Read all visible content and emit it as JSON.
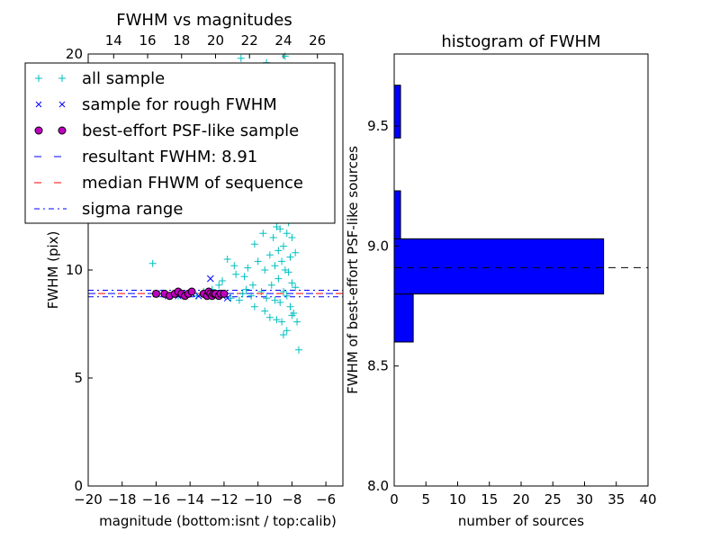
{
  "chart_data": [
    {
      "type": "scatter",
      "title": "FWHM vs magnitudes",
      "xlabel": "magnitude (bottom:isnt / top:calib)",
      "ylabel": "FWHM (pix)",
      "xlim": [
        -20,
        -5
      ],
      "ylim": [
        0,
        20
      ],
      "x_ticks": [
        -20,
        -18,
        -16,
        -14,
        -12,
        -10,
        -8,
        -6
      ],
      "x_tick_labels": [
        "−20",
        "−18",
        "−16",
        "−14",
        "−12",
        "−10",
        "−8",
        "−6"
      ],
      "y_ticks": [
        0,
        5,
        10,
        20
      ],
      "y_tick_labels": [
        "0",
        "5",
        "10",
        "20"
      ],
      "top_xlim": [
        12.5,
        27.5
      ],
      "top_x_ticks": [
        14,
        16,
        18,
        20,
        22,
        24,
        26
      ],
      "top_x_tick_labels": [
        "14",
        "16",
        "18",
        "20",
        "22",
        "24",
        "26"
      ],
      "grid": false,
      "legend_position": "top-left",
      "series": [
        {
          "name": "all sample",
          "marker": "plus",
          "color": "#00bfbf",
          "points": [
            [
              -16.2,
              10.3
            ],
            [
              -15.8,
              8.9
            ],
            [
              -15.2,
              8.8
            ],
            [
              -14.7,
              8.8
            ],
            [
              -14.3,
              8.8
            ],
            [
              -14.0,
              8.9
            ],
            [
              -13.6,
              8.8
            ],
            [
              -13.2,
              9.0
            ],
            [
              -12.9,
              8.9
            ],
            [
              -12.7,
              9.1
            ],
            [
              -12.4,
              8.9
            ],
            [
              -12.1,
              9.5
            ],
            [
              -11.8,
              10.5
            ],
            [
              -11.6,
              8.7
            ],
            [
              -11.3,
              9.8
            ],
            [
              -11.1,
              8.6
            ],
            [
              -10.9,
              8.9
            ],
            [
              -10.7,
              9.1
            ],
            [
              -10.6,
              10.1
            ],
            [
              -10.4,
              8.8
            ],
            [
              -10.3,
              9.3
            ],
            [
              -10.2,
              11.2
            ],
            [
              -10.0,
              10.4
            ],
            [
              -9.9,
              12.8
            ],
            [
              -9.8,
              9.0
            ],
            [
              -9.7,
              11.7
            ],
            [
              -9.6,
              10.0
            ],
            [
              -9.5,
              8.7
            ],
            [
              -9.4,
              12.4
            ],
            [
              -9.3,
              10.7
            ],
            [
              -9.2,
              9.3
            ],
            [
              -9.1,
              11.5
            ],
            [
              -9.0,
              8.6
            ],
            [
              -9.0,
              10.2
            ],
            [
              -8.9,
              12.0
            ],
            [
              -8.8,
              9.6
            ],
            [
              -8.8,
              10.9
            ],
            [
              -8.7,
              11.9
            ],
            [
              -8.7,
              8.5
            ],
            [
              -8.6,
              10.4
            ],
            [
              -8.6,
              12.5
            ],
            [
              -8.5,
              9.0
            ],
            [
              -8.5,
              11.1
            ],
            [
              -8.4,
              10.0
            ],
            [
              -8.4,
              12.9
            ],
            [
              -8.3,
              8.8
            ],
            [
              -8.3,
              11.7
            ],
            [
              -8.2,
              9.9
            ],
            [
              -8.2,
              12.2
            ],
            [
              -8.1,
              10.6
            ],
            [
              -8.1,
              8.3
            ],
            [
              -8.0,
              11.5
            ],
            [
              -8.0,
              9.4
            ],
            [
              -7.9,
              12.7
            ],
            [
              -7.9,
              8.0
            ],
            [
              -7.8,
              10.8
            ],
            [
              -7.8,
              9.2
            ],
            [
              -7.7,
              7.6
            ],
            [
              -7.6,
              6.3
            ],
            [
              -8.6,
              7.6
            ],
            [
              -8.3,
              7.2
            ],
            [
              -8.0,
              7.9
            ],
            [
              -9.3,
              7.8
            ],
            [
              -8.9,
              7.7
            ],
            [
              -10.2,
              8.3
            ],
            [
              -8.7,
              13.3
            ],
            [
              -8.2,
              13.5
            ],
            [
              -7.9,
              13.8
            ],
            [
              -9.2,
              13.1
            ],
            [
              -8.5,
              7.0
            ],
            [
              -9.6,
              8.1
            ],
            [
              -10.8,
              9.7
            ],
            [
              -11.4,
              10.2
            ],
            [
              -12.3,
              9.3
            ],
            [
              -9.5,
              19.6
            ],
            [
              -8.6,
              19.3
            ],
            [
              -8.4,
              19.9
            ],
            [
              -11.0,
              19.8
            ]
          ]
        },
        {
          "name": "sample for rough FWHM",
          "marker": "x",
          "color": "#0000ff",
          "points": [
            [
              -16.0,
              8.9
            ],
            [
              -15.3,
              8.8
            ],
            [
              -14.7,
              8.8
            ],
            [
              -14.3,
              8.9
            ],
            [
              -13.9,
              8.9
            ],
            [
              -13.5,
              8.8
            ],
            [
              -13.1,
              8.9
            ],
            [
              -12.8,
              9.6
            ],
            [
              -12.6,
              8.8
            ],
            [
              -12.4,
              8.9
            ],
            [
              -12.1,
              8.8
            ],
            [
              -11.8,
              8.7
            ]
          ]
        },
        {
          "name": "best-effort PSF-like sample",
          "marker": "circle",
          "color": "#bf00bf",
          "points": [
            [
              -16.0,
              8.9
            ],
            [
              -15.5,
              8.9
            ],
            [
              -15.2,
              8.8
            ],
            [
              -14.9,
              8.9
            ],
            [
              -14.7,
              9.0
            ],
            [
              -14.5,
              8.9
            ],
            [
              -14.3,
              8.8
            ],
            [
              -14.1,
              8.9
            ],
            [
              -13.9,
              9.0
            ],
            [
              -13.2,
              8.9
            ],
            [
              -13.0,
              8.8
            ],
            [
              -12.9,
              9.0
            ],
            [
              -12.8,
              8.9
            ],
            [
              -12.7,
              8.8
            ],
            [
              -12.6,
              8.9
            ],
            [
              -12.5,
              8.9
            ],
            [
              -12.3,
              8.8
            ],
            [
              -12.2,
              8.9
            ],
            [
              -12.0,
              8.9
            ]
          ]
        }
      ],
      "lines": [
        {
          "name": "resultant FWHM: 8.91",
          "value": 8.91,
          "style": "dashed",
          "color": "#0000ff"
        },
        {
          "name": "median FHWM of sequence",
          "value": 8.91,
          "style": "dashed",
          "color": "#ff0000"
        },
        {
          "name": "sigma range",
          "values": [
            8.76,
            9.06
          ],
          "style": "dashdot",
          "color": "#0000ff"
        }
      ]
    },
    {
      "type": "bar",
      "orientation": "horizontal",
      "title": "histogram of FWHM",
      "xlabel": "number of sources",
      "ylabel": "FWHM of best-effort PSF-like sources",
      "xlim": [
        0,
        40
      ],
      "ylim": [
        8.0,
        9.8
      ],
      "x_ticks": [
        0,
        5,
        10,
        15,
        20,
        25,
        30,
        35,
        40
      ],
      "x_tick_labels": [
        "0",
        "5",
        "10",
        "15",
        "20",
        "25",
        "30",
        "35",
        "40"
      ],
      "y_ticks": [
        8.0,
        8.5,
        9.0,
        9.5
      ],
      "y_tick_labels": [
        "8.0",
        "8.5",
        "9.0",
        "9.5"
      ],
      "bins": [
        {
          "range": [
            8.6,
            8.8
          ],
          "count": 3
        },
        {
          "range": [
            8.8,
            9.03
          ],
          "count": 33
        },
        {
          "range": [
            9.03,
            9.23
          ],
          "count": 1
        },
        {
          "range": [
            9.45,
            9.67
          ],
          "count": 1
        }
      ],
      "bar_color": "#0000ff",
      "reference_line": {
        "value": 8.91,
        "style": "dashed",
        "color": "#000000"
      }
    }
  ]
}
